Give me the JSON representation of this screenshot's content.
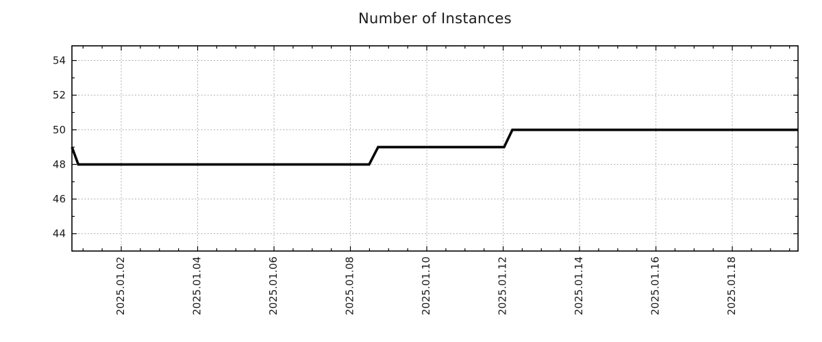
{
  "page": {
    "background": "#ffffff"
  },
  "chart_data": {
    "type": "line",
    "title": "Number of Instances",
    "xlabel": "",
    "ylabel": "",
    "line_style": "step",
    "line_color": "#000000",
    "line_width": 3.6,
    "grid": {
      "show": true,
      "style": "dotted",
      "color": "#ababab"
    },
    "legend": {
      "show": false
    },
    "x_unit": "hours since 2025-01-01 00:00",
    "x": [
      -7,
      -3,
      179.8,
      185.4,
      264.6,
      269.8,
      449.3
    ],
    "series": [
      {
        "name": "instances",
        "color": "#000000",
        "values": [
          49,
          48,
          48,
          49,
          49,
          50,
          50
        ]
      }
    ],
    "points_datetime": [
      [
        "2024-12-31 17:00",
        49
      ],
      [
        "2024-12-31 21:00",
        48
      ],
      [
        "2025-01-08 12:00",
        48
      ],
      [
        "2025-01-08 17:00",
        49
      ],
      [
        "2025-01-12 01:00",
        49
      ],
      [
        "2025-01-12 06:00",
        50
      ],
      [
        "2025-01-19 17:00",
        50
      ]
    ],
    "x_axis": {
      "range_hours": [
        -7,
        449.3
      ],
      "major_tick_hours": [
        24,
        72,
        120,
        168,
        216,
        264,
        312,
        360,
        408
      ],
      "major_tick_labels": [
        "2025.01.02",
        "2025.01.04",
        "2025.01.06",
        "2025.01.08",
        "2025.01.10",
        "2025.01.12",
        "2025.01.14",
        "2025.01.16",
        "2025.01.18"
      ],
      "minor_interval_hours": 12,
      "label_rotation_deg": -90
    },
    "y_axis": {
      "range": [
        43,
        54.85
      ],
      "major_ticks": [
        44,
        46,
        48,
        50,
        52,
        54
      ],
      "major_tick_labels": [
        "44",
        "46",
        "48",
        "50",
        "52",
        "54"
      ],
      "minor_interval": 1
    },
    "text_color": "#1a1a1a",
    "frame_color": "#000000"
  }
}
